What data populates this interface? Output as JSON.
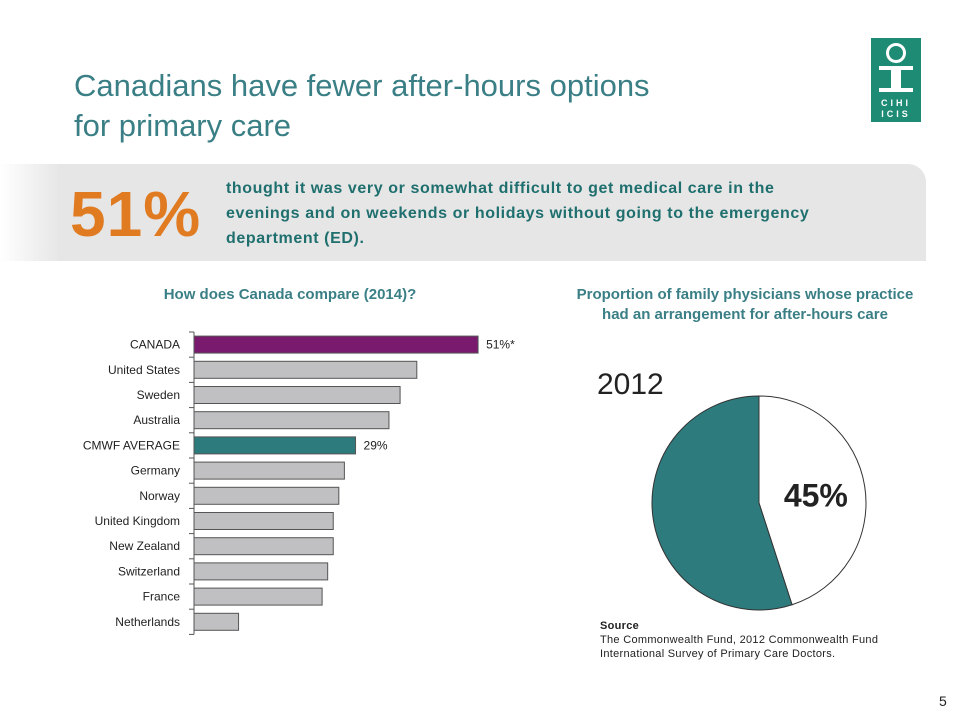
{
  "slide": {
    "title_line1": "Canadians have fewer after-hours options",
    "title_line2": "for primary care",
    "page_number": "5",
    "logo_text_top": "CIHI",
    "logo_text_bottom": "ICIS"
  },
  "highlight": {
    "value": "51%",
    "text": "thought it was very or somewhat difficult to get medical care in the evenings and on weekends or holidays without going to the emergency department (ED)."
  },
  "colors": {
    "title": "#3a7f85",
    "accent_orange": "#e07b22",
    "canada_bar": "#7a1a6e",
    "average_bar": "#2e7b7e",
    "other_bar": "#c0c0c2",
    "pie_teal": "#2e7b7e"
  },
  "chart_data": [
    {
      "type": "bar",
      "orientation": "horizontal",
      "title": "How does Canada compare (2014)?",
      "categories": [
        "CANADA",
        "United States",
        "Sweden",
        "Australia",
        "CMWF AVERAGE",
        "Germany",
        "Norway",
        "United Kingdom",
        "New Zealand",
        "Switzerland",
        "France",
        "Netherlands"
      ],
      "values": [
        51,
        40,
        37,
        35,
        29,
        27,
        26,
        25,
        25,
        24,
        23,
        8
      ],
      "data_labels": [
        "51%*",
        "",
        "",
        "",
        "29%",
        "",
        "",
        "",
        "",
        "",
        "",
        ""
      ],
      "highlight": {
        "CANADA": "canada",
        "CMWF AVERAGE": "average"
      },
      "xlim": [
        0,
        100
      ],
      "grid": false
    },
    {
      "type": "pie",
      "title": "Proportion of family physicians whose practice had an arrangement for after-hours care",
      "year_label": "2012",
      "slices": [
        {
          "value": 45,
          "label": "45%",
          "color": "#ffffff"
        },
        {
          "value": 55,
          "label": "",
          "color": "#2e7b7e"
        }
      ]
    }
  ],
  "source": {
    "label": "Source",
    "text": "The Commonwealth Fund, 2012 Commonwealth Fund International Survey of Primary Care Doctors."
  }
}
